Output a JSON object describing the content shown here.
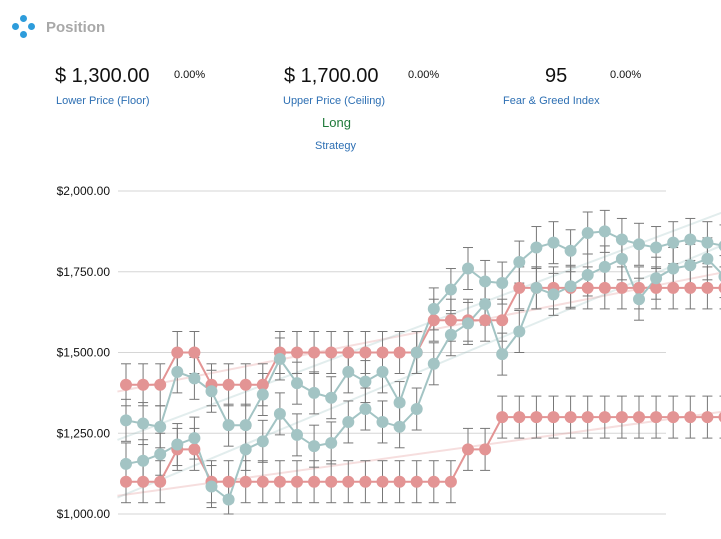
{
  "header": {
    "title": "Position",
    "icon": "position-logo-icon"
  },
  "metrics": {
    "floor": {
      "value": "$ 1,300.00",
      "change": "0.00%",
      "label": "Lower Price (Floor)"
    },
    "ceiling": {
      "value": "$ 1,700.00",
      "change": "0.00%",
      "label": "Upper Price (Ceiling)"
    },
    "fear_greed": {
      "value": "95",
      "change": "0.00%",
      "label": "Fear & Greed Index"
    },
    "strategy": {
      "value": "Long",
      "label": "Strategy"
    }
  },
  "colors": {
    "ceiling_series": "#e39494",
    "price_series": "#a3c4c4",
    "grid": "#d6d6d6",
    "accent": "#2d9cdb"
  },
  "chart_data": {
    "type": "line",
    "title": "",
    "xlabel": "",
    "ylabel": "",
    "ylim": [
      1000,
      2000
    ],
    "yticks": [
      "$1,000.00",
      "$1,250.00",
      "$1,500.00",
      "$1,750.00",
      "$2,000.00"
    ],
    "ytick_values": [
      1000,
      1250,
      1500,
      1750,
      2000
    ],
    "grid": true,
    "error_bars": true,
    "x": [
      1,
      2,
      3,
      4,
      5,
      6,
      7,
      8,
      9,
      10,
      11,
      12,
      13,
      14,
      15,
      16,
      17,
      18,
      19,
      20,
      21,
      22,
      23,
      24,
      25,
      26,
      27,
      28,
      29,
      30,
      31,
      32,
      33,
      34,
      35,
      36
    ],
    "series": [
      {
        "color": "#e39494",
        "values": [
          1400,
          1400,
          1400,
          1500,
          1500,
          1400,
          1400,
          1400,
          1400,
          1500,
          1500,
          1500,
          1500,
          1500,
          1500,
          1500,
          1500,
          1500,
          1600,
          1600,
          1600,
          1600,
          1600,
          1700,
          1700,
          1700,
          1700,
          1700,
          1700,
          1700,
          1700,
          1700,
          1700,
          1700,
          1700,
          1700
        ]
      },
      {
        "color": "#e39494",
        "values": [
          1100,
          1100,
          1100,
          1200,
          1200,
          1100,
          1100,
          1100,
          1100,
          1100,
          1100,
          1100,
          1100,
          1100,
          1100,
          1100,
          1100,
          1100,
          1100,
          1100,
          1200,
          1200,
          1300,
          1300,
          1300,
          1300,
          1300,
          1300,
          1300,
          1300,
          1300,
          1300,
          1300,
          1300,
          1300,
          1300
        ]
      },
      {
        "color": "#a3c4c4",
        "values": [
          1290,
          1280,
          1270,
          1440,
          1420,
          1380,
          1275,
          1275,
          1370,
          1480,
          1405,
          1375,
          1360,
          1440,
          1410,
          1440,
          1345,
          1500,
          1635,
          1695,
          1760,
          1720,
          1715,
          1780,
          1825,
          1840,
          1815,
          1870,
          1875,
          1850,
          1835,
          1825,
          1840,
          1850,
          1840,
          1830
        ]
      },
      {
        "color": "#a3c4c4",
        "values": [
          1155,
          1165,
          1185,
          1215,
          1235,
          1085,
          1045,
          1200,
          1225,
          1310,
          1245,
          1210,
          1220,
          1285,
          1325,
          1285,
          1270,
          1325,
          1465,
          1555,
          1590,
          1650,
          1495,
          1565,
          1700,
          1680,
          1705,
          1740,
          1765,
          1790,
          1665,
          1730,
          1760,
          1770,
          1790,
          1735
        ]
      }
    ]
  }
}
